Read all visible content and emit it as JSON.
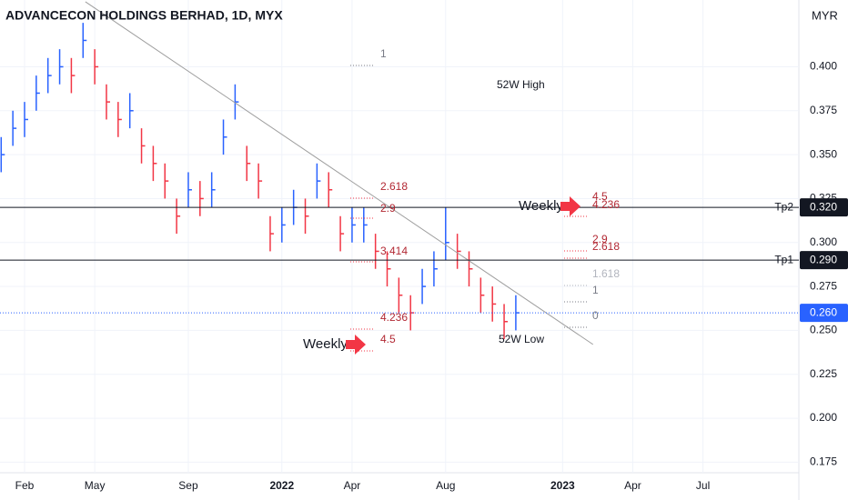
{
  "chart_data": {
    "type": "ohlc",
    "title": "ADVANCECON HOLDINGS BERHAD, 1D, MYX",
    "y_axis_label": "MYR",
    "xlim": [
      -0.05,
      34.1
    ],
    "xticks": [
      {
        "value": 1,
        "label": "Feb"
      },
      {
        "value": 4,
        "label": "May"
      },
      {
        "value": 8,
        "label": "Sep"
      },
      {
        "value": 12,
        "label": "2022"
      },
      {
        "value": 15,
        "label": "Apr"
      },
      {
        "value": 19,
        "label": "Aug"
      },
      {
        "value": 24,
        "label": "2023"
      },
      {
        "value": 27,
        "label": "Apr"
      },
      {
        "value": 30,
        "label": "Jul"
      }
    ],
    "ylim": [
      0.169,
      0.438
    ],
    "yticks": [
      0.175,
      {
        "value": 0.2,
        "label": "0.200"
      },
      0.225,
      {
        "value": 0.25,
        "label": "0.250"
      },
      0.275,
      {
        "value": 0.3,
        "label": "0.300"
      },
      0.325,
      {
        "value": 0.35,
        "label": "0.350"
      },
      0.375,
      {
        "value": 0.4,
        "label": "0.400"
      }
    ],
    "grid": true,
    "up_color": "#2962ff",
    "down_color": "#f23645",
    "x": [
      0,
      0.5,
      1,
      1.5,
      2,
      2.5,
      3,
      3.5,
      4,
      4.5,
      5,
      5.5,
      6,
      6.5,
      7,
      7.5,
      8,
      8.5,
      9,
      9.5,
      10,
      10.5,
      11,
      11.5,
      12,
      12.5,
      13,
      13.5,
      14,
      14.5,
      15,
      15.5,
      16,
      16.5,
      17,
      17.5,
      18,
      18.5,
      19,
      19.5,
      20,
      20.5,
      21,
      21.5,
      22
    ],
    "high": [
      0.36,
      0.375,
      0.38,
      0.395,
      0.405,
      0.41,
      0.405,
      0.425,
      0.41,
      0.39,
      0.38,
      0.385,
      0.365,
      0.355,
      0.345,
      0.325,
      0.34,
      0.335,
      0.34,
      0.37,
      0.39,
      0.355,
      0.345,
      0.315,
      0.32,
      0.33,
      0.325,
      0.345,
      0.34,
      0.315,
      0.32,
      0.32,
      0.305,
      0.295,
      0.28,
      0.27,
      0.285,
      0.295,
      0.32,
      0.305,
      0.295,
      0.28,
      0.275,
      0.265,
      0.27
    ],
    "low": [
      0.34,
      0.355,
      0.36,
      0.375,
      0.385,
      0.39,
      0.385,
      0.405,
      0.39,
      0.37,
      0.36,
      0.365,
      0.345,
      0.335,
      0.325,
      0.305,
      0.32,
      0.315,
      0.32,
      0.35,
      0.37,
      0.335,
      0.325,
      0.295,
      0.3,
      0.31,
      0.305,
      0.325,
      0.32,
      0.295,
      0.3,
      0.3,
      0.285,
      0.275,
      0.26,
      0.25,
      0.265,
      0.275,
      0.29,
      0.285,
      0.275,
      0.26,
      0.255,
      0.245,
      0.25
    ],
    "close": [
      0.35,
      0.365,
      0.37,
      0.385,
      0.395,
      0.4,
      0.395,
      0.415,
      0.4,
      0.38,
      0.37,
      0.375,
      0.355,
      0.345,
      0.335,
      0.315,
      0.33,
      0.325,
      0.33,
      0.36,
      0.38,
      0.345,
      0.335,
      0.305,
      0.31,
      0.32,
      0.315,
      0.335,
      0.33,
      0.305,
      0.31,
      0.31,
      0.295,
      0.285,
      0.27,
      0.26,
      0.275,
      0.285,
      0.3,
      0.295,
      0.285,
      0.27,
      0.265,
      0.255,
      0.26
    ],
    "trendline": {
      "x": [
        3.6,
        25.3
      ],
      "y": [
        0.437,
        0.242
      ]
    },
    "price_lines": [
      {
        "name": "Tp2",
        "value": 0.32,
        "label": "0.320"
      },
      {
        "name": "Tp1",
        "value": 0.29,
        "label": "0.290"
      }
    ],
    "last_price": {
      "value": 0.26,
      "label": "0.260"
    },
    "annotations": [
      "1",
      "2.618",
      "2.9",
      "3.414",
      "4.236",
      "4.5",
      "4.5",
      "4.236",
      "2.9",
      "2.618",
      "1.618",
      "1",
      "0",
      "52W High",
      "52W Low",
      "Weekly",
      "Weekly"
    ]
  }
}
